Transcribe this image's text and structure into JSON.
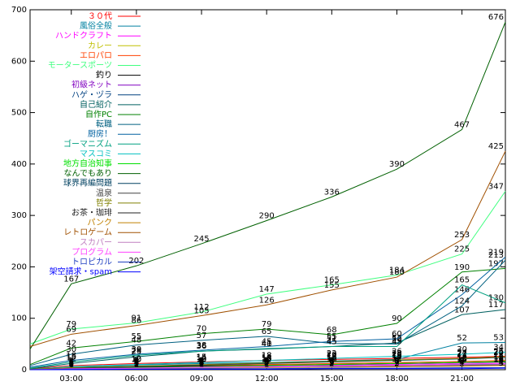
{
  "chart_data": {
    "type": "line",
    "x": [
      1.1,
      3,
      6,
      9,
      12,
      15,
      18,
      21,
      23
    ],
    "xlim": [
      1.1,
      23.0
    ],
    "xticks": [
      {
        "value": 3,
        "label": "03:00"
      },
      {
        "value": 6,
        "label": "06:00"
      },
      {
        "value": 9,
        "label": "09:00"
      },
      {
        "value": 12,
        "label": "12:00"
      },
      {
        "value": 15,
        "label": "15:00"
      },
      {
        "value": 18,
        "label": "18:00"
      },
      {
        "value": 21,
        "label": "21:00"
      }
    ],
    "ylim": [
      0,
      700
    ],
    "yticks": [
      0,
      100,
      200,
      300,
      400,
      500,
      600,
      700
    ],
    "series": [
      {
        "name": "３０代",
        "color": "#ff0000",
        "values": [
          2,
          8,
          12,
          15,
          18,
          20,
          22,
          24,
          26
        ]
      },
      {
        "name": "風俗全般",
        "color": "#0080a0",
        "values": [
          1,
          5,
          9,
          12,
          14,
          17,
          20,
          52,
          53
        ]
      },
      {
        "name": "ハンドクラフト",
        "color": "#ff00ff",
        "values": [
          0,
          2,
          4,
          6,
          7,
          9,
          11,
          13,
          15
        ]
      },
      {
        "name": "カレー",
        "color": "#c0c000",
        "values": [
          1,
          3,
          5,
          7,
          9,
          11,
          12,
          14,
          16
        ]
      },
      {
        "name": "エロパロ",
        "color": "#ff4000",
        "values": [
          0,
          4,
          6,
          8,
          10,
          12,
          14,
          16,
          18
        ]
      },
      {
        "name": "モータースポーツ",
        "color": "#40ff80",
        "values": [
          50,
          79,
          91,
          112,
          147,
          165,
          184,
          225,
          347
        ]
      },
      {
        "name": "釣り",
        "color": "#000000",
        "values": [
          0,
          3,
          5,
          7,
          8,
          10,
          12,
          14,
          15
        ]
      },
      {
        "name": "初級ネット",
        "color": "#8000c0",
        "values": [
          0,
          2,
          3,
          5,
          6,
          8,
          9,
          11,
          12
        ]
      },
      {
        "name": "ハゲ・ヅラ",
        "color": "#004080",
        "values": [
          0,
          1,
          3,
          4,
          6,
          7,
          8,
          10,
          11
        ]
      },
      {
        "name": "自己紹介",
        "color": "#006060",
        "values": [
          2,
          12,
          25,
          36,
          40,
          45,
          52,
          107,
          117
        ]
      },
      {
        "name": "自作PC",
        "color": "#008000",
        "values": [
          10,
          42,
          55,
          70,
          79,
          68,
          90,
          190,
          197
        ]
      },
      {
        "name": "転職",
        "color": "#006080",
        "values": [
          8,
          30,
          48,
          57,
          65,
          51,
          50,
          124,
          213
        ]
      },
      {
        "name": "厨房！",
        "color": "#0060a0",
        "values": [
          5,
          18,
          30,
          38,
          45,
          55,
          60,
          146,
          219
        ]
      },
      {
        "name": "ゴーマニズム",
        "color": "#00a080",
        "values": [
          3,
          15,
          28,
          36,
          41,
          45,
          45,
          165,
          130
        ]
      },
      {
        "name": "マスコミ",
        "color": "#00c0c0",
        "values": [
          1,
          6,
          10,
          14,
          18,
          22,
          26,
          30,
          34
        ]
      },
      {
        "name": "地方自治知事",
        "color": "#00e000",
        "values": [
          0,
          2,
          4,
          6,
          8,
          10,
          12,
          14,
          16
        ]
      },
      {
        "name": "なんでもあり",
        "color": "#006000",
        "values": [
          40,
          167,
          202,
          245,
          290,
          336,
          390,
          467,
          676
        ]
      },
      {
        "name": "球界再編問題",
        "color": "#004060",
        "values": [
          0,
          3,
          6,
          9,
          12,
          15,
          18,
          21,
          24
        ]
      },
      {
        "name": "温泉",
        "color": "#404040",
        "values": [
          0,
          1,
          2,
          3,
          5,
          6,
          7,
          8,
          9
        ]
      },
      {
        "name": "哲学",
        "color": "#808000",
        "values": [
          1,
          4,
          7,
          10,
          13,
          16,
          19,
          22,
          25
        ]
      },
      {
        "name": "お茶・珈琲",
        "color": "#202020",
        "values": [
          0,
          2,
          3,
          4,
          5,
          6,
          7,
          8,
          9
        ]
      },
      {
        "name": "パンク",
        "color": "#c08000",
        "values": [
          0,
          1,
          2,
          3,
          4,
          5,
          6,
          7,
          8
        ]
      },
      {
        "name": "レトロゲーム",
        "color": "#a05000",
        "values": [
          45,
          69,
          86,
          105,
          126,
          155,
          180,
          253,
          425
        ]
      },
      {
        "name": "スカパー",
        "color": "#c080c0",
        "values": [
          0,
          1,
          3,
          4,
          5,
          6,
          8,
          9,
          10
        ]
      },
      {
        "name": "プログラム",
        "color": "#ff40ff",
        "values": [
          0,
          2,
          3,
          5,
          6,
          8,
          9,
          11,
          12
        ]
      },
      {
        "name": "トロピカル",
        "color": "#2040c0",
        "values": [
          0,
          1,
          1,
          2,
          2,
          3,
          3,
          4,
          4
        ]
      },
      {
        "name": "架空請求・spam",
        "color": "#0000ff",
        "values": [
          0,
          0,
          1,
          1,
          1,
          2,
          2,
          2,
          3
        ]
      }
    ]
  }
}
